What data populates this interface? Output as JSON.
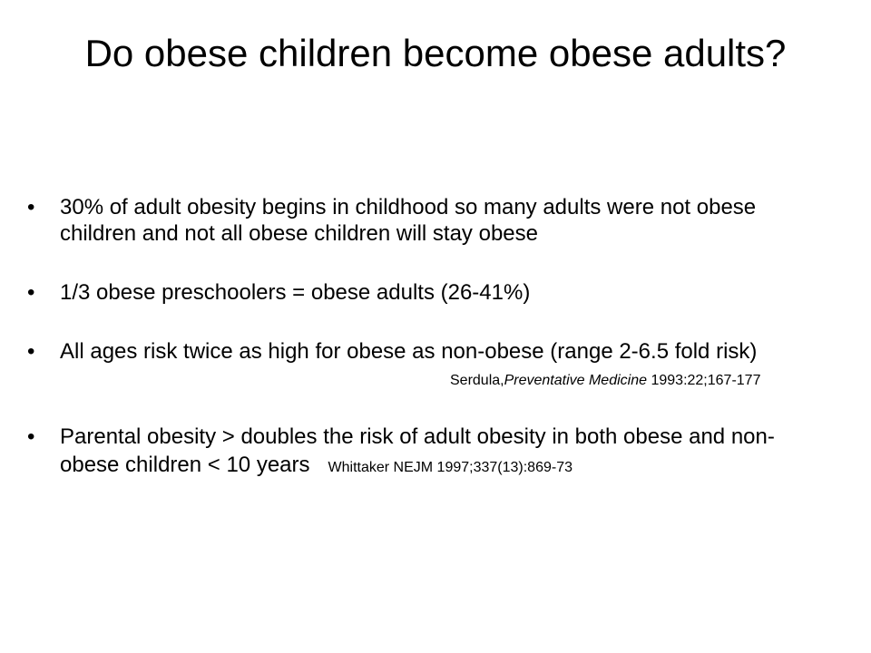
{
  "title": "Do obese children become obese adults?",
  "bullets": [
    {
      "text": "30% of adult obesity begins in childhood so many adults were not obese children and not all obese children will stay obese"
    },
    {
      "text": "1/3 obese preschoolers = obese adults (26-41%)"
    },
    {
      "text": "All ages risk twice as high for obese as non-obese (range 2-6.5 fold risk)",
      "citation": {
        "author": "Serdula,",
        "journal": "Preventative Medicine",
        "ref": "1993:22;167-177"
      }
    },
    {
      "text": "Parental obesity > doubles the risk of adult obesity in both obese and non-obese children < 10 years",
      "citation": {
        "author": "Whittaker NEJM",
        "ref": "1997;337(13):869-73"
      }
    }
  ]
}
